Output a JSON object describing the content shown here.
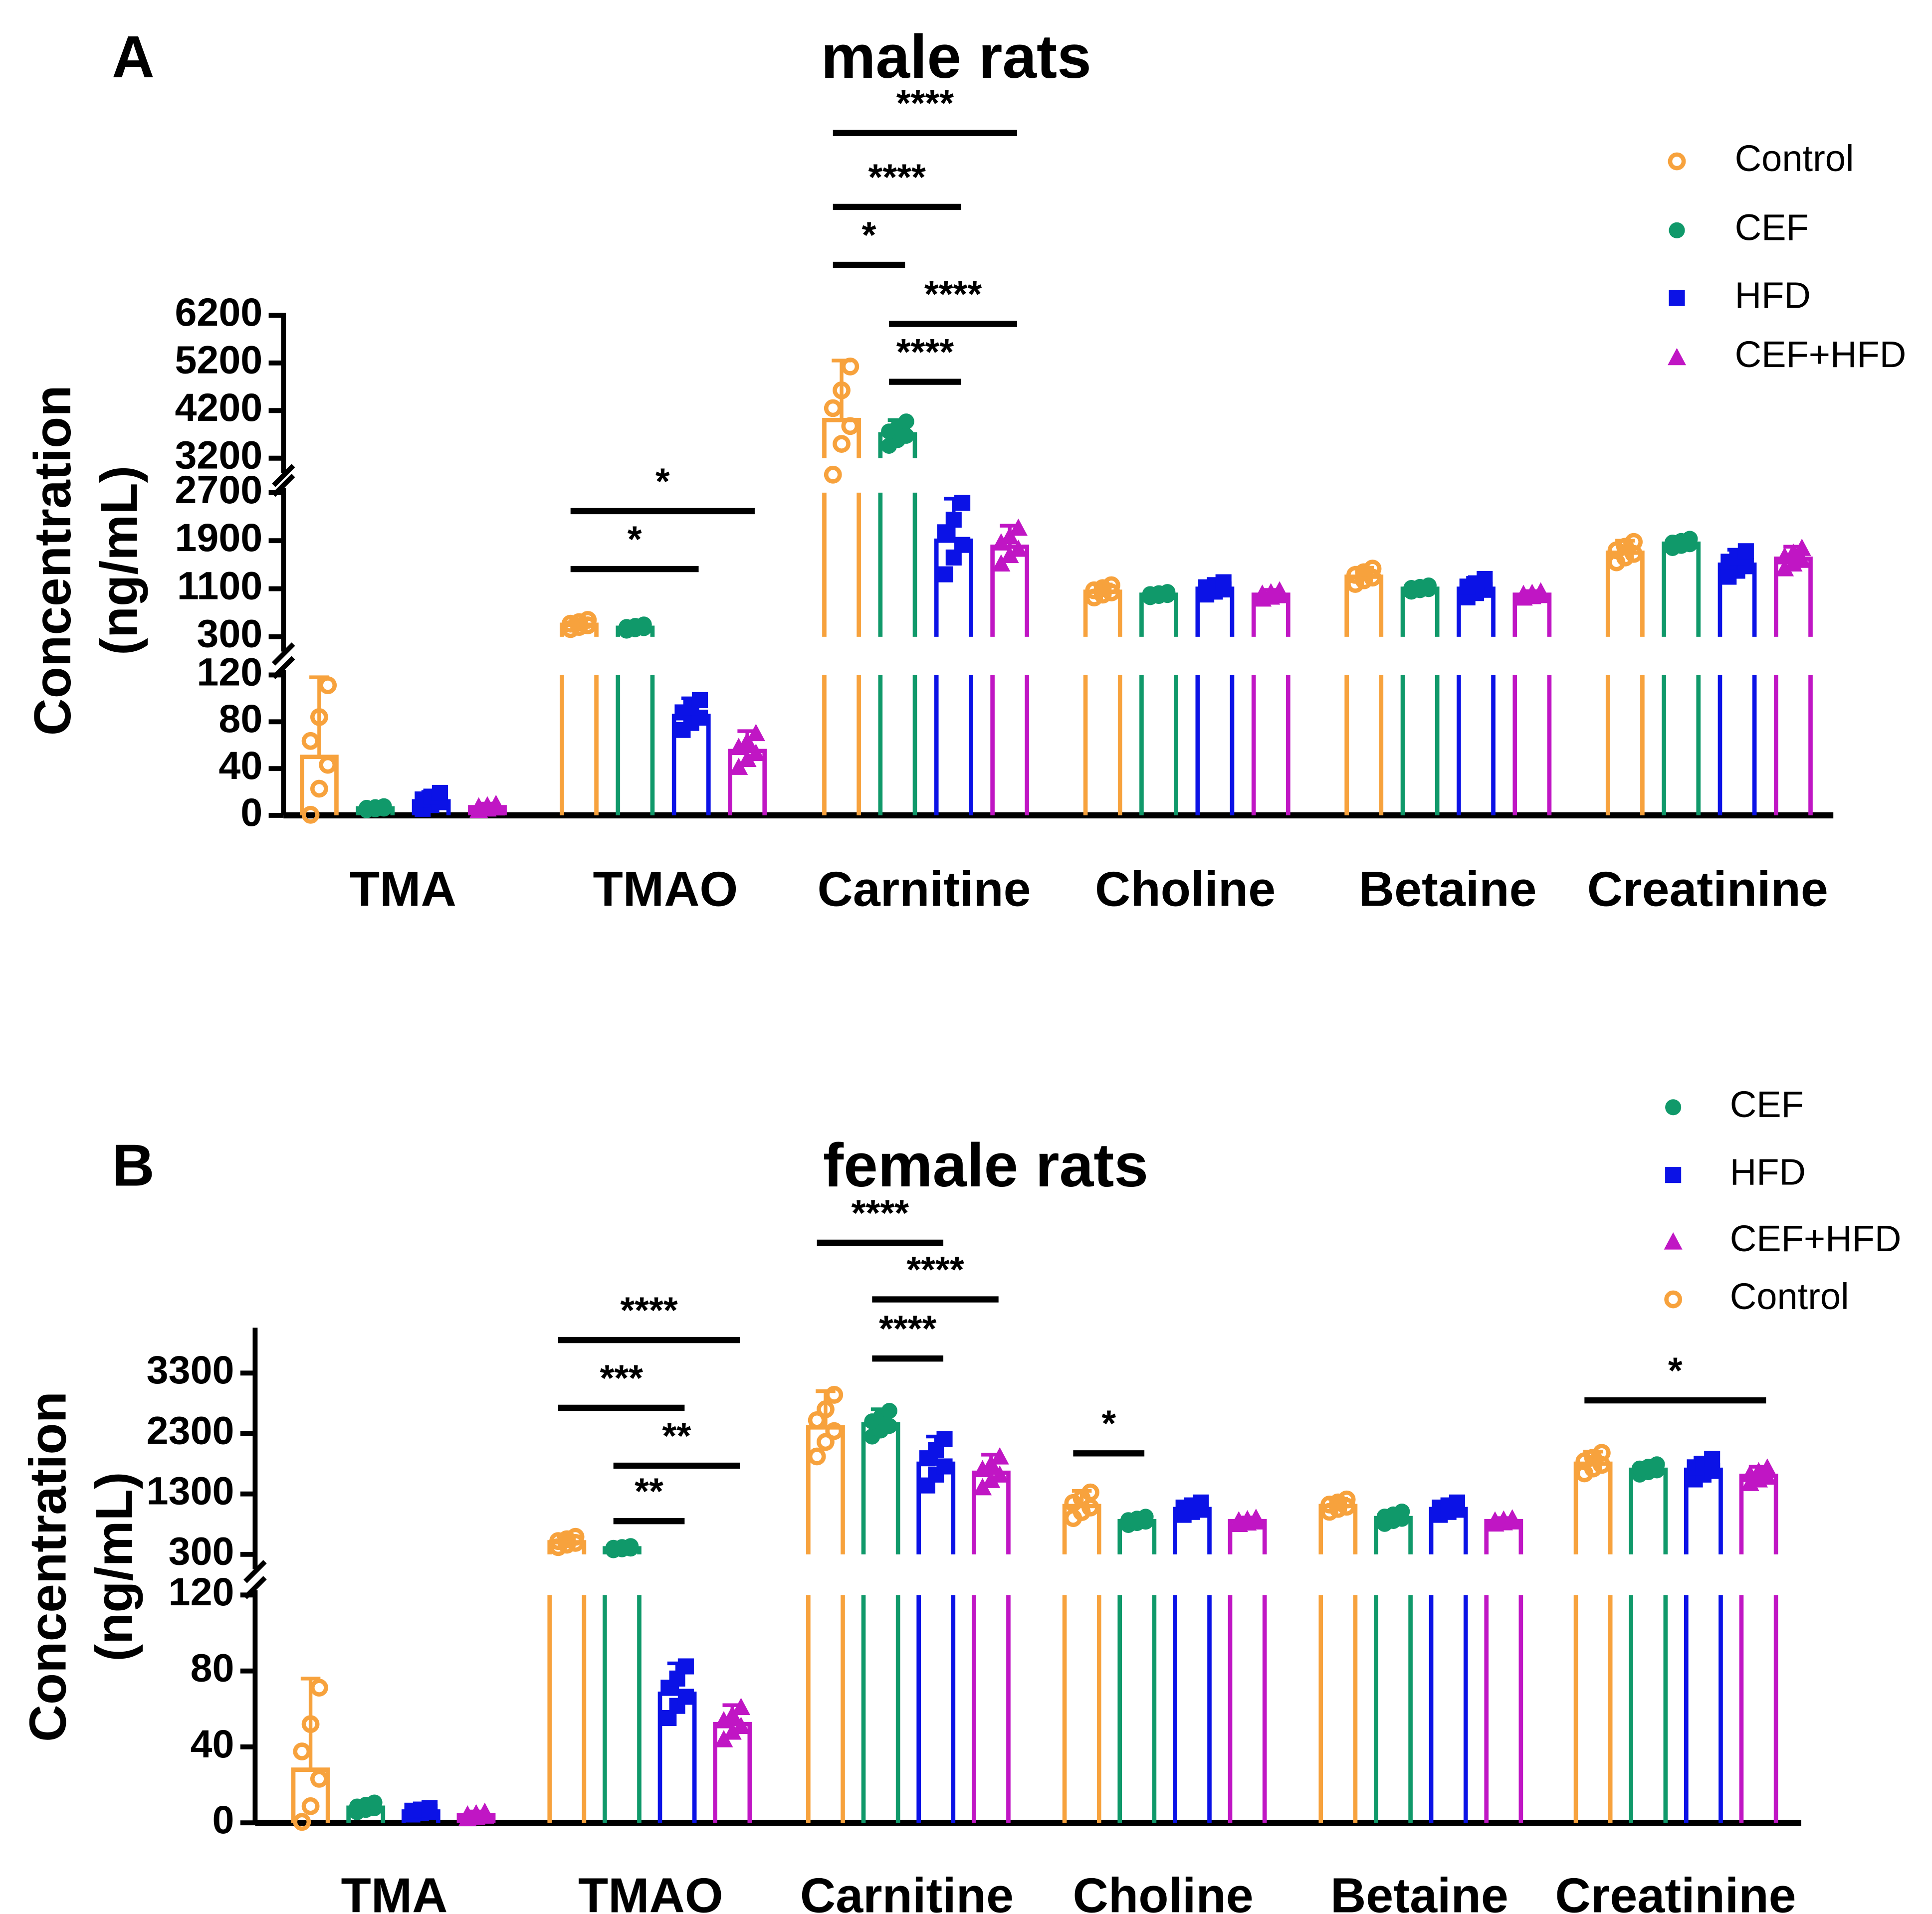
{
  "colors": {
    "Control": "#F7A23D",
    "CEF": "#10996A",
    "HFD": "#0B12E6",
    "CEF+HFD": "#C016C4"
  },
  "markers": {
    "Control": "open-circle",
    "CEF": "circle",
    "HFD": "square",
    "CEF+HFD": "triangle"
  },
  "chart_data": [
    {
      "type": "bar",
      "panel_label": "A",
      "title": "male rats",
      "ylabel": [
        "Concentration",
        "(ng/mL)"
      ],
      "xlabel": "",
      "categories": [
        "TMA",
        "TMAO",
        "Carnitine",
        "Choline",
        "Betaine",
        "Creatinine"
      ],
      "legend": [
        "Control",
        "CEF",
        "HFD",
        "CEF+HFD"
      ],
      "legend_position": "top-right",
      "y_segments": [
        {
          "range": [
            0,
            120
          ],
          "ticks": [
            0,
            40,
            80,
            120
          ]
        },
        {
          "range": [
            300,
            2700
          ],
          "ticks": [
            300,
            1100,
            1900,
            2700
          ]
        },
        {
          "range": [
            3200,
            6200
          ],
          "ticks": [
            3200,
            4200,
            5200,
            6200
          ]
        }
      ],
      "series": [
        {
          "name": "Control",
          "values": [
            50,
            500,
            4000,
            1050,
            1300,
            1700
          ],
          "sd": [
            68,
            90,
            1250,
            120,
            150,
            200
          ]
        },
        {
          "name": "CEF",
          "values": [
            6,
            450,
            3700,
            1000,
            1100,
            1850
          ],
          "sd": [
            2,
            60,
            300,
            50,
            60,
            90
          ]
        },
        {
          "name": "HFD",
          "values": [
            12,
            85,
            1900,
            1100,
            1100,
            1500
          ],
          "sd": [
            8,
            15,
            700,
            120,
            180,
            250
          ]
        },
        {
          "name": "CEF+HFD",
          "values": [
            7,
            55,
            1800,
            1000,
            1000,
            1600
          ],
          "sd": [
            3,
            17,
            350,
            80,
            60,
            200
          ]
        }
      ],
      "significance": [
        {
          "category": "TMAO",
          "from": "Control",
          "to": "CEF+HFD",
          "label": "*"
        },
        {
          "category": "TMAO",
          "from": "Control",
          "to": "HFD",
          "label": "*"
        },
        {
          "category": "Carnitine",
          "from": "Control",
          "to": "CEF+HFD",
          "label": "****"
        },
        {
          "category": "Carnitine",
          "from": "Control",
          "to": "HFD",
          "label": "****"
        },
        {
          "category": "Carnitine",
          "from": "Control",
          "to": "CEF",
          "label": "*"
        },
        {
          "category": "Carnitine",
          "from": "CEF",
          "to": "CEF+HFD",
          "label": "****"
        },
        {
          "category": "Carnitine",
          "from": "CEF",
          "to": "HFD",
          "label": "****"
        }
      ]
    },
    {
      "type": "bar",
      "panel_label": "B",
      "title": "female rats",
      "ylabel": [
        "Concentration",
        "(ng/mL)"
      ],
      "xlabel": "",
      "categories": [
        "TMA",
        "TMAO",
        "Carnitine",
        "Choline",
        "Betaine",
        "Creatinine"
      ],
      "legend": [
        "CEF",
        "HFD",
        "CEF+HFD",
        "Control"
      ],
      "legend_position": "top-right",
      "y_segments": [
        {
          "range": [
            0,
            120
          ],
          "ticks": [
            0,
            40,
            80,
            120
          ]
        },
        {
          "range": [
            300,
            4050
          ],
          "ticks": [
            300,
            1300,
            2300,
            3300
          ]
        }
      ],
      "series": [
        {
          "name": "Control",
          "values": [
            28,
            500,
            2400,
            1100,
            1100,
            1800
          ],
          "sd": [
            48,
            100,
            600,
            250,
            120,
            200
          ]
        },
        {
          "name": "CEF",
          "values": [
            8,
            400,
            2450,
            850,
            900,
            1700
          ],
          "sd": [
            3,
            40,
            250,
            80,
            120,
            100
          ]
        },
        {
          "name": "HFD",
          "values": [
            6,
            68,
            1800,
            1050,
            1050,
            1700
          ],
          "sd": [
            2,
            16,
            450,
            120,
            120,
            200
          ]
        },
        {
          "name": "CEF+HFD",
          "values": [
            4,
            52,
            1650,
            850,
            850,
            1600
          ],
          "sd": [
            2,
            10,
            300,
            60,
            50,
            150
          ]
        }
      ],
      "significance": [
        {
          "category": "TMAO",
          "from": "Control",
          "to": "CEF+HFD",
          "label": "****"
        },
        {
          "category": "TMAO",
          "from": "Control",
          "to": "HFD",
          "label": "***"
        },
        {
          "category": "TMAO",
          "from": "CEF",
          "to": "CEF+HFD",
          "label": "**"
        },
        {
          "category": "TMAO",
          "from": "CEF",
          "to": "HFD",
          "label": "**"
        },
        {
          "category": "Carnitine",
          "from": "Control",
          "to": "HFD",
          "label": "****"
        },
        {
          "category": "Carnitine",
          "from": "CEF",
          "to": "CEF+HFD",
          "label": "****"
        },
        {
          "category": "Carnitine",
          "from": "CEF",
          "to": "HFD",
          "label": "****"
        },
        {
          "category": "Choline",
          "from": "Control",
          "to": "CEF",
          "label": "*"
        },
        {
          "category": "Creatinine",
          "from": "Control",
          "to": "CEF+HFD",
          "label": "*"
        }
      ]
    }
  ]
}
